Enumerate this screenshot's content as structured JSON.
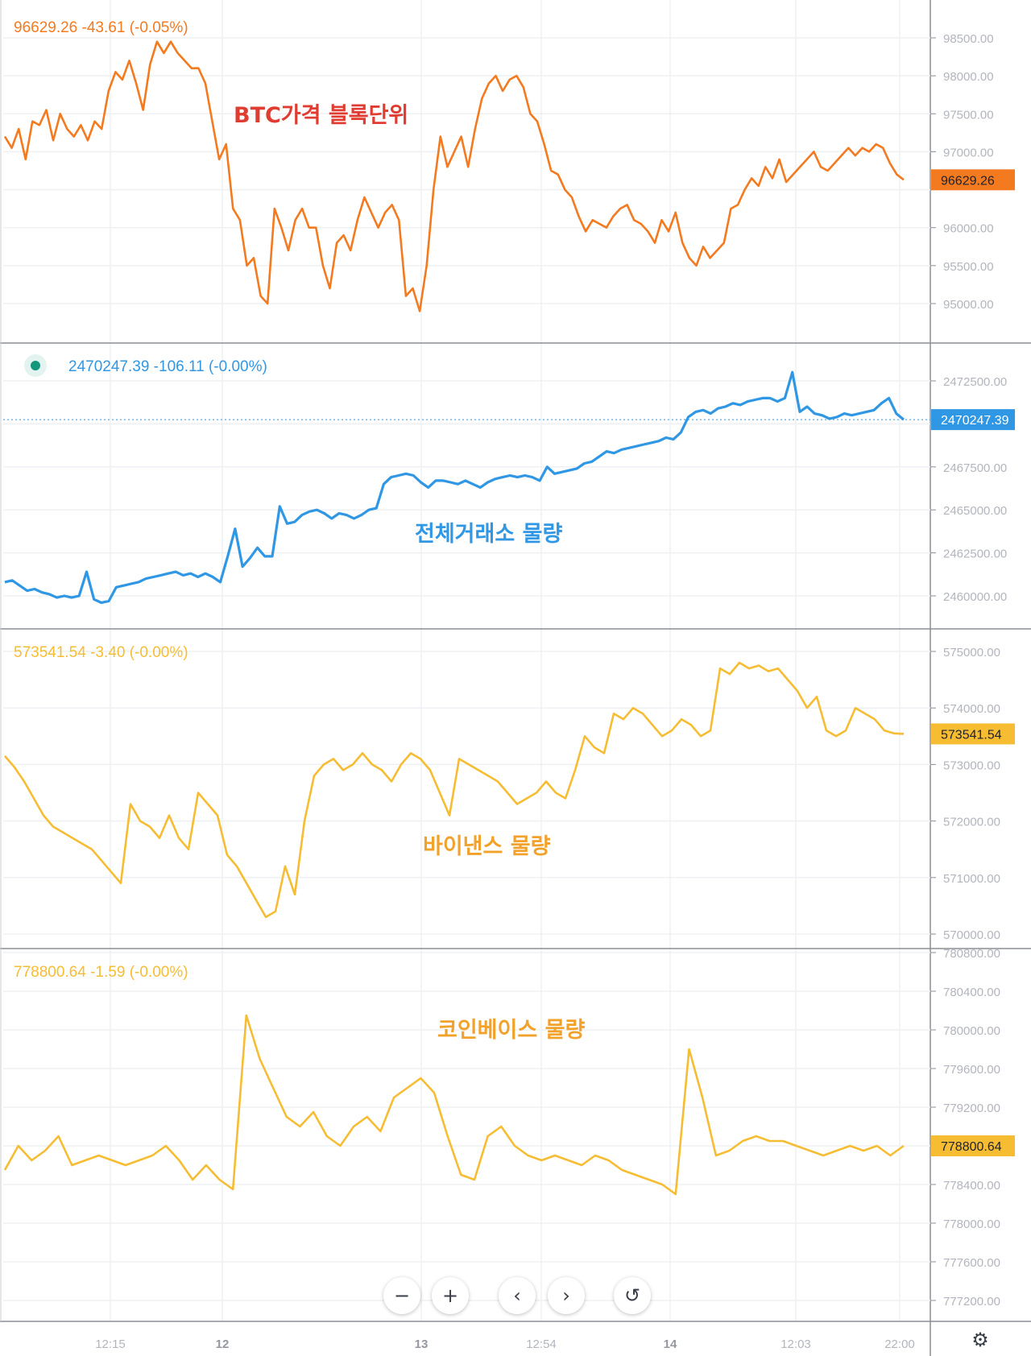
{
  "colors": {
    "btc": "#f47a20",
    "total": "#2f97e4",
    "binance": "#f6bd33",
    "coinbase": "#f6bd33",
    "annot_red": "#e03c31",
    "annot_blue": "#2f97e4",
    "annot_orange": "#f2a22b",
    "dot": "#11977b"
  },
  "icons": {
    "zoom_out": "minus-icon",
    "zoom_in": "plus-icon",
    "scroll_left": "chevron-left-icon",
    "scroll_right": "chevron-right-icon",
    "reset": "reset-icon",
    "settings": "gear-icon"
  },
  "x_ticks": [
    {
      "label": "12:15",
      "bold": false
    },
    {
      "label": "12",
      "bold": true
    },
    {
      "label": "13",
      "bold": true
    },
    {
      "label": "12:54",
      "bold": false
    },
    {
      "label": "14",
      "bold": true
    },
    {
      "label": "12:03",
      "bold": false
    },
    {
      "label": "22:00",
      "bold": false
    }
  ],
  "chart_data": [
    {
      "type": "line",
      "title": "BTC가격 블록단위",
      "legend": {
        "value": "96629.26",
        "change": "-43.61",
        "pct": "(-0.05%)"
      },
      "last_value_label": "96629.26",
      "ylim": [
        94600,
        98900
      ],
      "yticks": [
        95000,
        95500,
        96000,
        96500,
        97000,
        97500,
        98000,
        98500
      ],
      "ytick_labels": [
        "95000.00",
        "95500.00",
        "96000.00",
        "",
        "97000.00",
        "97500.00",
        "98000.00",
        "98500.00"
      ],
      "series": [
        {
          "values": [
            97200,
            97050,
            97300,
            96900,
            97400,
            97350,
            97550,
            97150,
            97500,
            97300,
            97200,
            97350,
            97150,
            97400,
            97300,
            97800,
            98050,
            97950,
            98200,
            97900,
            97550,
            98150,
            98450,
            98300,
            98450,
            98300,
            98200,
            98100,
            98100,
            97900,
            97400,
            96900,
            97100,
            96250,
            96100,
            95500,
            95600,
            95100,
            95000,
            96250,
            96000,
            95700,
            96100,
            96250,
            96000,
            96000,
            95500,
            95200,
            95800,
            95900,
            95700,
            96100,
            96400,
            96200,
            96000,
            96200,
            96300,
            96100,
            95100,
            95200,
            94900,
            95500,
            96500,
            97200,
            96800,
            97000,
            97200,
            96800,
            97300,
            97700,
            97900,
            98000,
            97800,
            97950,
            98000,
            97850,
            97500,
            97400,
            97100,
            96750,
            96700,
            96500,
            96400,
            96150,
            95950,
            96100,
            96050,
            96000,
            96150,
            96250,
            96300,
            96100,
            96050,
            95950,
            95800,
            96100,
            95950,
            96200,
            95800,
            95600,
            95500,
            95750,
            95600,
            95700,
            95800,
            96250,
            96300,
            96500,
            96650,
            96550,
            96800,
            96650,
            96900,
            96600,
            96700,
            96800,
            96900,
            97000,
            96800,
            96750,
            96850,
            96950,
            97050,
            96950,
            97050,
            97000,
            97100,
            97050,
            96850,
            96700,
            96630
          ]
        }
      ]
    },
    {
      "type": "line",
      "title": "전체거래소 물량",
      "legend": {
        "value": "2470247.39",
        "change": "-106.11",
        "pct": "(-0.00%)"
      },
      "last_value_label": "2470247.39",
      "ylim": [
        2458200,
        2473800
      ],
      "yticks": [
        2460000,
        2462500,
        2465000,
        2467500,
        2470000,
        2472500
      ],
      "ytick_labels": [
        "2460000.00",
        "2462500.00",
        "2465000.00",
        "2467500.00",
        "",
        "2472500.00"
      ],
      "series": [
        {
          "values": [
            2460800,
            2460900,
            2460600,
            2460300,
            2460400,
            2460200,
            2460100,
            2459900,
            2460000,
            2459900,
            2460000,
            2461400,
            2459800,
            2459600,
            2459700,
            2460500,
            2460600,
            2460700,
            2460800,
            2461000,
            2461100,
            2461200,
            2461300,
            2461400,
            2461200,
            2461300,
            2461100,
            2461300,
            2461100,
            2460800,
            2462300,
            2463900,
            2461700,
            2462200,
            2462800,
            2462300,
            2462300,
            2465200,
            2464200,
            2464300,
            2464700,
            2464900,
            2465000,
            2464800,
            2464500,
            2464800,
            2464700,
            2464500,
            2464700,
            2465000,
            2465100,
            2466500,
            2466900,
            2467000,
            2467100,
            2467000,
            2466600,
            2466300,
            2466700,
            2466700,
            2466600,
            2466500,
            2466700,
            2466500,
            2466300,
            2466600,
            2466800,
            2466900,
            2467000,
            2466900,
            2467000,
            2466900,
            2466700,
            2467500,
            2467100,
            2467200,
            2467300,
            2467400,
            2467700,
            2467800,
            2468100,
            2468400,
            2468300,
            2468500,
            2468600,
            2468700,
            2468800,
            2468900,
            2469000,
            2469200,
            2469100,
            2469500,
            2470400,
            2470700,
            2470800,
            2470600,
            2470900,
            2471000,
            2471200,
            2471100,
            2471300,
            2471400,
            2471500,
            2471500,
            2471300,
            2471500,
            2473000,
            2470700,
            2471000,
            2470600,
            2470500,
            2470300,
            2470400,
            2470600,
            2470500,
            2470600,
            2470700,
            2470800,
            2471200,
            2471500,
            2470600,
            2470247
          ]
        }
      ]
    },
    {
      "type": "line",
      "title": "바이낸스 물량",
      "legend": {
        "value": "573541.54",
        "change": "-3.40",
        "pct": "(-0.00%)"
      },
      "last_value_label": "573541.54",
      "ylim": [
        569920,
        575220
      ],
      "yticks": [
        570000,
        571000,
        572000,
        573000,
        574000,
        575000
      ],
      "ytick_labels": [
        "570000.00",
        "571000.00",
        "572000.00",
        "573000.00",
        "574000.00",
        "575000.00"
      ],
      "series": [
        {
          "values": [
            573150,
            572950,
            572700,
            572400,
            572100,
            571900,
            571800,
            571700,
            571600,
            571500,
            571300,
            571100,
            570900,
            572300,
            572000,
            571900,
            571700,
            572100,
            571700,
            571500,
            572500,
            572300,
            572100,
            571400,
            571200,
            570900,
            570600,
            570300,
            570400,
            571200,
            570700,
            572000,
            572800,
            573000,
            573100,
            572900,
            573000,
            573200,
            573000,
            572900,
            572700,
            573000,
            573200,
            573100,
            572900,
            572500,
            572100,
            573100,
            573000,
            572900,
            572800,
            572700,
            572500,
            572300,
            572400,
            572500,
            572700,
            572500,
            572400,
            572900,
            573500,
            573300,
            573200,
            573900,
            573800,
            574000,
            573900,
            573700,
            573500,
            573600,
            573800,
            573700,
            573500,
            573600,
            574700,
            574600,
            574800,
            574700,
            574750,
            574650,
            574700,
            574500,
            574300,
            574000,
            574200,
            573600,
            573500,
            573600,
            574000,
            573900,
            573800,
            573600,
            573550,
            573541
          ]
        }
      ]
    },
    {
      "type": "line",
      "title": "코인베이스 물량",
      "legend": {
        "value": "778800.64",
        "change": "-1.59",
        "pct": "(-0.00%)"
      },
      "last_value_label": "778800.64",
      "ylim": [
        777050,
        780850
      ],
      "yticks": [
        777200,
        777600,
        778000,
        778400,
        778800,
        779200,
        779600,
        780000,
        780400,
        780800
      ],
      "ytick_labels": [
        "777200.00",
        "777600.00",
        "778000.00",
        "778400.00",
        "",
        "779200.00",
        "779600.00",
        "780000.00",
        "780400.00",
        "780800.00"
      ],
      "series": [
        {
          "values": [
            778550,
            778800,
            778650,
            778750,
            778900,
            778600,
            778650,
            778700,
            778650,
            778600,
            778650,
            778700,
            778800,
            778650,
            778450,
            778600,
            778450,
            778350,
            780150,
            779700,
            779400,
            779100,
            779000,
            779150,
            778900,
            778800,
            779000,
            779100,
            778950,
            779300,
            779400,
            779500,
            779350,
            778900,
            778500,
            778450,
            778900,
            779000,
            778800,
            778700,
            778650,
            778700,
            778650,
            778600,
            778700,
            778650,
            778550,
            778500,
            778450,
            778400,
            778300,
            779800,
            779300,
            778700,
            778750,
            778850,
            778900,
            778850,
            778850,
            778800,
            778750,
            778700,
            778750,
            778800,
            778750,
            778800,
            778700,
            778800
          ]
        }
      ]
    }
  ]
}
